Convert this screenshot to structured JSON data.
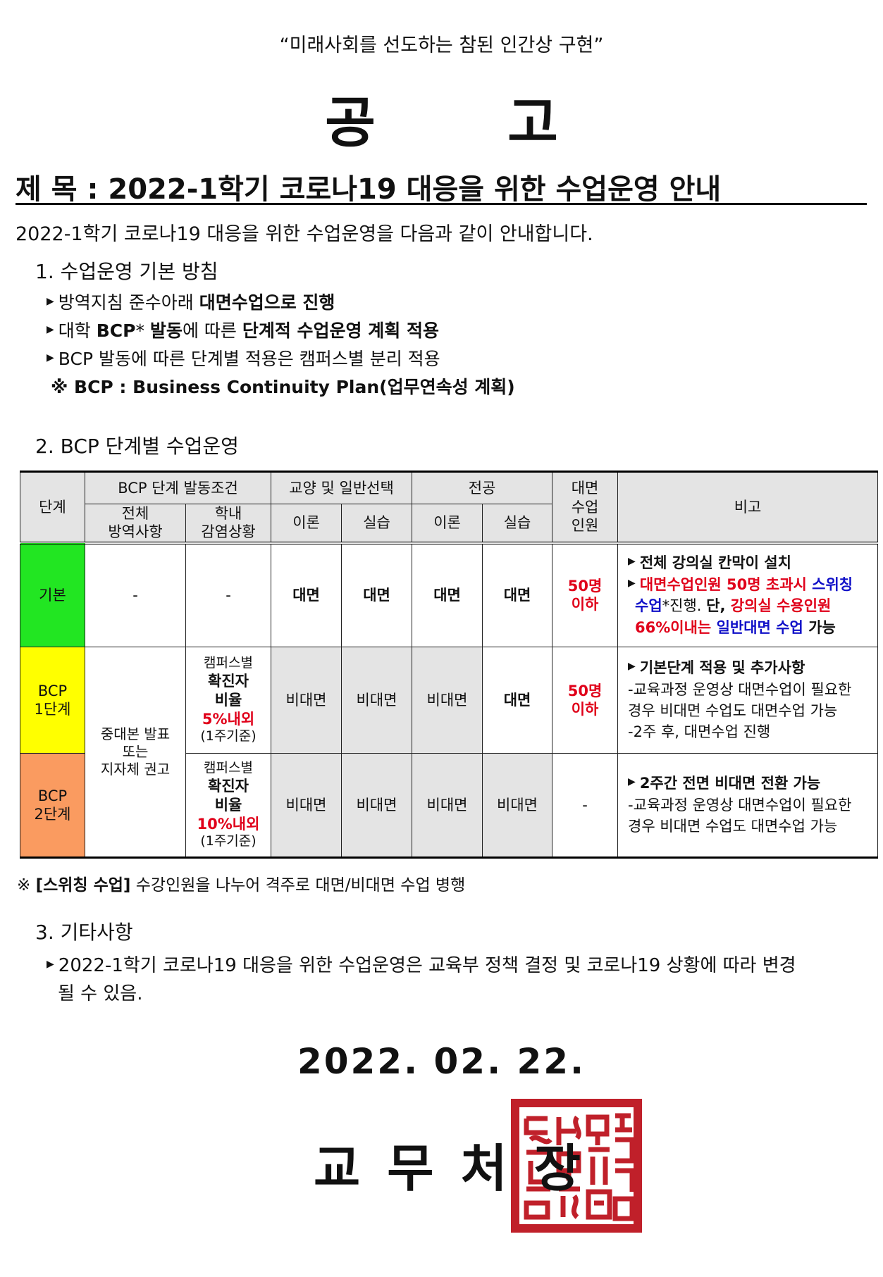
{
  "motto": "“미래사회를 선도하는 참된 인간상 구현”",
  "heading": "공 고",
  "title": "제 목 : 2022-1학기 코로나19 대응을 위한 수업운영 안내",
  "intro": "2022-1학기 코로나19 대응을 위한 수업운영을 다음과 같이 안내합니다.",
  "section1": {
    "title": "1. 수업운영 기본 방침",
    "b1_plain": "방역지침 준수아래 ",
    "b1_bold": "대면수업으로 진행",
    "b2_plain1": "대학 ",
    "b2_bold1": "BCP",
    "b2_plain2": "* ",
    "b2_bold2": "발동",
    "b2_plain3": "에 따른 ",
    "b2_bold3": "단계적 수업운영 계획 적용",
    "b3": "BCP 발동에 따른 단계별 적용은 캠퍼스별 분리 적용",
    "b4": "※ BCP : Business Continuity Plan(업무연속성 계획)"
  },
  "section2": {
    "title": "2. BCP 단계별 수업운영",
    "table": {
      "headers": {
        "stage": "단계",
        "bcp_condition": "BCP 단계 발동조건",
        "overall": "전체\n방역사항",
        "campus": "학내\n감염상황",
        "liberal": "교양 및 일반선택",
        "major": "전공",
        "theory": "이론",
        "practice": "실습",
        "capacity": "대면\n수업\n인원",
        "remarks": "비고"
      },
      "rows": [
        {
          "stage": "기본",
          "overall": "-",
          "campus": "-",
          "cells": [
            "대면",
            "대면",
            "대면",
            "대면"
          ],
          "capacity": "50명\n이하",
          "remarks": {
            "l1": "전체 강의실 칸막이 설치",
            "l2a": "대면수업인원 50명 초과시 ",
            "l2b": "스위칭",
            "l3a": "수업",
            "l3b": "*진행. ",
            "l3c": "단, ",
            "l3d": "강의실 수용인원",
            "l4a": "66%이내는 ",
            "l4b": "일반대면 수업",
            "l4c": " 가능"
          }
        },
        {
          "stage": "BCP\n1단계",
          "overall": "중대본 발표\n또는\n지자체 권고",
          "campus_a": "캠퍼스별",
          "campus_b": "확진자\n비율",
          "campus_c": "5%내외",
          "campus_d": "(1주기준)",
          "cells": [
            "비대면",
            "비대면",
            "비대면",
            "대면"
          ],
          "capacity": "50명\n이하",
          "remarks": {
            "l1": "기본단계 적용 및 추가사항",
            "l2": "-교육과정 운영상 대면수업이 필요한\n 경우 비대면 수업도 대면수업 가능",
            "l3": "-2주 후, 대면수업 진행"
          }
        },
        {
          "stage": "BCP\n2단계",
          "campus_a": "캠퍼스별",
          "campus_b": "확진자\n비율",
          "campus_c": "10%내외",
          "campus_d": "(1주기준)",
          "cells": [
            "비대면",
            "비대면",
            "비대면",
            "비대면"
          ],
          "capacity": "-",
          "remarks": {
            "l1": "2주간 전면 비대면 전환 가능",
            "l2": "-교육과정 운영상 대면수업이 필요한\n 경우 비대면 수업도 대면수업 가능"
          }
        }
      ]
    },
    "footnote_mark": "※ ",
    "footnote_bold": "[스위칭 수업]",
    "footnote_text": " 수강인원을 나누어 격주로 대면/비대면 수업 병행"
  },
  "section3": {
    "title": "3. 기타사항",
    "b1_line1": "2022-1학기 코로나19 대응을 위한 수업운영은 교육부 정책 결정 및 코로나19 상황에 따라 변경",
    "b1_line2": "될 수 있음."
  },
  "date": "2022. 02. 22.",
  "signatory": "교무처장",
  "stamp_color": "#c0202a",
  "colors": {
    "basic": "#22e622",
    "bcp1": "#ffff00",
    "bcp2": "#fa9b60",
    "red_text": "#e0001a",
    "blue_text": "#1010c8"
  }
}
